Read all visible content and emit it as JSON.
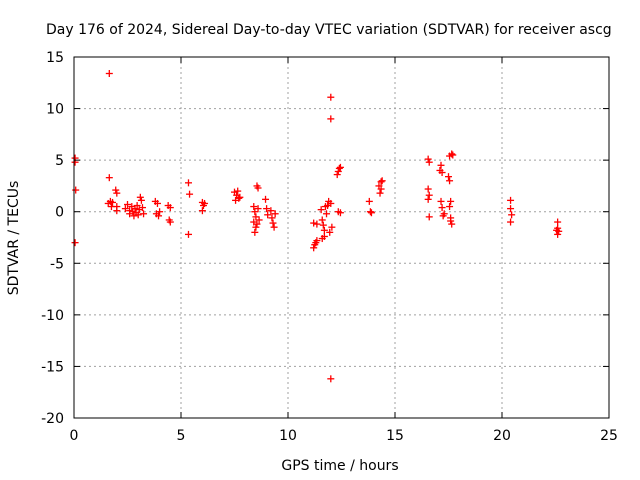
{
  "chart_data": {
    "type": "scatter",
    "title": "Day 176 of 2024, Sidereal Day-to-day VTEC variation (SDTVAR) for receiver ascg",
    "xlabel": "GPS time / hours",
    "ylabel": "SDTVAR / TECUs",
    "xlim": [
      0,
      25
    ],
    "ylim": [
      -20,
      15
    ],
    "xticks": [
      "0",
      "5",
      "10",
      "15",
      "20",
      "25"
    ],
    "yticks": [
      "-20",
      "-15",
      "-10",
      "-5",
      "0",
      "5",
      "10",
      "15"
    ],
    "grid": true,
    "marker": "+",
    "color": "#ff0000",
    "points": [
      [
        0.05,
        5.2
      ],
      [
        0.05,
        4.8
      ],
      [
        0.08,
        2.1
      ],
      [
        0.05,
        -3.0
      ],
      [
        1.65,
        13.4
      ],
      [
        1.65,
        3.3
      ],
      [
        1.6,
        0.8
      ],
      [
        1.7,
        1.0
      ],
      [
        1.75,
        0.5
      ],
      [
        1.8,
        0.9
      ],
      [
        1.95,
        2.1
      ],
      [
        2.0,
        1.8
      ],
      [
        2.0,
        0.5
      ],
      [
        2.0,
        0.1
      ],
      [
        2.4,
        0.3
      ],
      [
        2.5,
        0.7
      ],
      [
        2.6,
        0.1
      ],
      [
        2.6,
        -0.2
      ],
      [
        2.7,
        0.5
      ],
      [
        2.75,
        0.0
      ],
      [
        2.8,
        -0.4
      ],
      [
        2.85,
        0.3
      ],
      [
        2.9,
        -0.1
      ],
      [
        2.95,
        0.6
      ],
      [
        3.0,
        -0.3
      ],
      [
        3.05,
        0.2
      ],
      [
        3.1,
        1.4
      ],
      [
        3.15,
        1.1
      ],
      [
        3.2,
        0.4
      ],
      [
        3.25,
        -0.2
      ],
      [
        3.8,
        1.0
      ],
      [
        3.9,
        0.8
      ],
      [
        3.85,
        -0.2
      ],
      [
        3.95,
        -0.4
      ],
      [
        4.0,
        0.0
      ],
      [
        4.4,
        0.6
      ],
      [
        4.5,
        0.4
      ],
      [
        4.45,
        -0.8
      ],
      [
        4.5,
        -1.0
      ],
      [
        5.35,
        2.8
      ],
      [
        5.4,
        1.7
      ],
      [
        5.35,
        -2.2
      ],
      [
        6.0,
        0.9
      ],
      [
        6.05,
        0.6
      ],
      [
        6.0,
        0.1
      ],
      [
        6.1,
        0.8
      ],
      [
        7.5,
        1.9
      ],
      [
        7.6,
        1.6
      ],
      [
        7.7,
        1.3
      ],
      [
        7.55,
        1.1
      ],
      [
        7.65,
        2.0
      ],
      [
        7.75,
        1.4
      ],
      [
        8.4,
        0.5
      ],
      [
        8.45,
        0.0
      ],
      [
        8.5,
        -0.5
      ],
      [
        8.4,
        -1.0
      ],
      [
        8.5,
        -1.5
      ],
      [
        8.45,
        -2.0
      ],
      [
        8.55,
        -1.2
      ],
      [
        8.6,
        0.3
      ],
      [
        8.65,
        -0.8
      ],
      [
        8.55,
        2.5
      ],
      [
        8.6,
        2.3
      ],
      [
        8.95,
        1.2
      ],
      [
        9.0,
        0.3
      ],
      [
        9.05,
        -0.3
      ],
      [
        9.2,
        0.1
      ],
      [
        9.25,
        -0.6
      ],
      [
        9.3,
        -1.1
      ],
      [
        9.35,
        -1.5
      ],
      [
        9.4,
        -0.2
      ],
      [
        11.2,
        -3.5
      ],
      [
        11.25,
        -3.2
      ],
      [
        11.3,
        -3.0
      ],
      [
        11.35,
        -2.8
      ],
      [
        11.2,
        -1.1
      ],
      [
        11.35,
        -1.2
      ],
      [
        11.55,
        0.2
      ],
      [
        11.6,
        -0.8
      ],
      [
        11.65,
        -1.3
      ],
      [
        11.7,
        -1.8
      ],
      [
        11.7,
        -2.4
      ],
      [
        11.75,
        0.5
      ],
      [
        11.8,
        -0.2
      ],
      [
        11.85,
        0.6
      ],
      [
        11.9,
        1.0
      ],
      [
        11.95,
        -2.0
      ],
      [
        12.0,
        0.8
      ],
      [
        12.05,
        -1.5
      ],
      [
        11.6,
        -2.6
      ],
      [
        12.0,
        11.1
      ],
      [
        12.0,
        9.0
      ],
      [
        12.0,
        -16.2
      ],
      [
        12.3,
        3.6
      ],
      [
        12.35,
        3.9
      ],
      [
        12.4,
        4.2
      ],
      [
        12.45,
        4.3
      ],
      [
        12.35,
        0.0
      ],
      [
        12.45,
        -0.1
      ],
      [
        13.8,
        1.0
      ],
      [
        13.85,
        0.0
      ],
      [
        13.9,
        -0.1
      ],
      [
        14.25,
        2.5
      ],
      [
        14.3,
        1.8
      ],
      [
        14.35,
        2.9
      ],
      [
        14.4,
        3.0
      ],
      [
        14.35,
        2.2
      ],
      [
        16.55,
        5.1
      ],
      [
        16.6,
        4.8
      ],
      [
        16.55,
        2.2
      ],
      [
        16.6,
        1.6
      ],
      [
        16.55,
        1.2
      ],
      [
        16.6,
        -0.5
      ],
      [
        17.1,
        4.0
      ],
      [
        17.15,
        4.5
      ],
      [
        17.2,
        3.8
      ],
      [
        17.15,
        1.0
      ],
      [
        17.2,
        0.4
      ],
      [
        17.25,
        -0.4
      ],
      [
        17.3,
        -0.2
      ],
      [
        17.5,
        3.4
      ],
      [
        17.55,
        3.0
      ],
      [
        17.6,
        1.0
      ],
      [
        17.55,
        0.5
      ],
      [
        17.6,
        -0.9
      ],
      [
        17.65,
        -1.2
      ],
      [
        17.55,
        5.4
      ],
      [
        17.65,
        5.6
      ],
      [
        17.7,
        5.5
      ],
      [
        17.6,
        -0.6
      ],
      [
        20.4,
        1.1
      ],
      [
        20.4,
        0.3
      ],
      [
        20.45,
        -0.3
      ],
      [
        20.4,
        -1.0
      ],
      [
        22.6,
        -1.0
      ],
      [
        22.6,
        -1.6
      ],
      [
        22.65,
        -1.9
      ],
      [
        22.6,
        -2.2
      ],
      [
        22.55,
        -1.8
      ]
    ]
  }
}
